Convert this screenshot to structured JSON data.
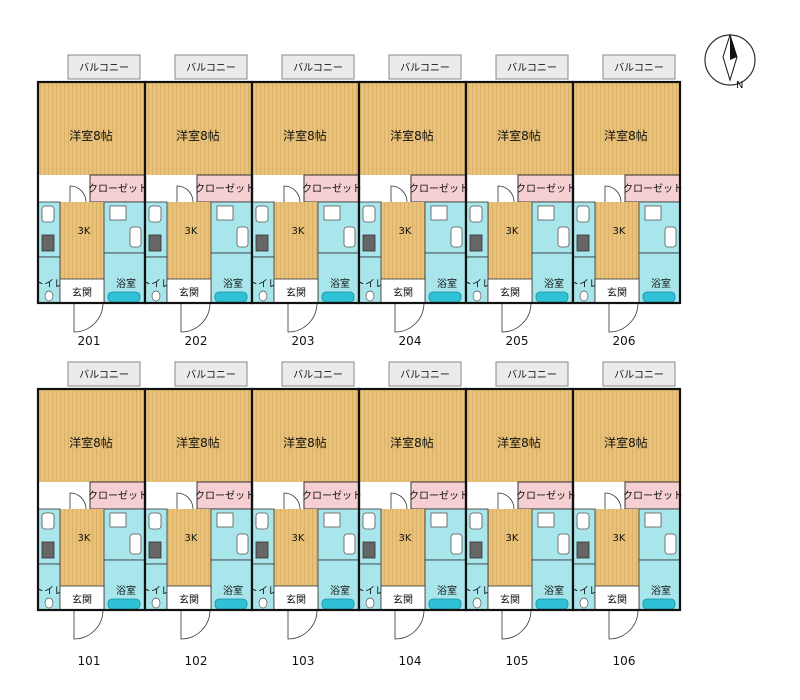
{
  "compass": {
    "label": "N"
  },
  "colors": {
    "wood": "#e8c27a",
    "wood_line": "#d2a85a",
    "wet": "#a8e6ec",
    "closet": "#f6cfd2",
    "balcony": "#ebebeb",
    "wall": "#111111",
    "tub": "#2fc2d6"
  },
  "room_labels": {
    "balcony": "バルコニー",
    "western_room": "洋室8帖",
    "closet": "クローゼット",
    "kitchen": "3K",
    "bath": "浴室",
    "toilet": "トイレ",
    "entrance": "玄関"
  },
  "floors": [
    {
      "name": "upper",
      "units": [
        "201",
        "202",
        "203",
        "204",
        "205",
        "206"
      ]
    },
    {
      "name": "lower",
      "units": [
        "101",
        "102",
        "103",
        "104",
        "105",
        "106"
      ]
    }
  ],
  "icons": [
    "compass-needle-icon",
    "door-swing-icon",
    "bathtub-icon",
    "toilet-icon",
    "sink-icon",
    "stove-icon",
    "washbasin-icon"
  ]
}
